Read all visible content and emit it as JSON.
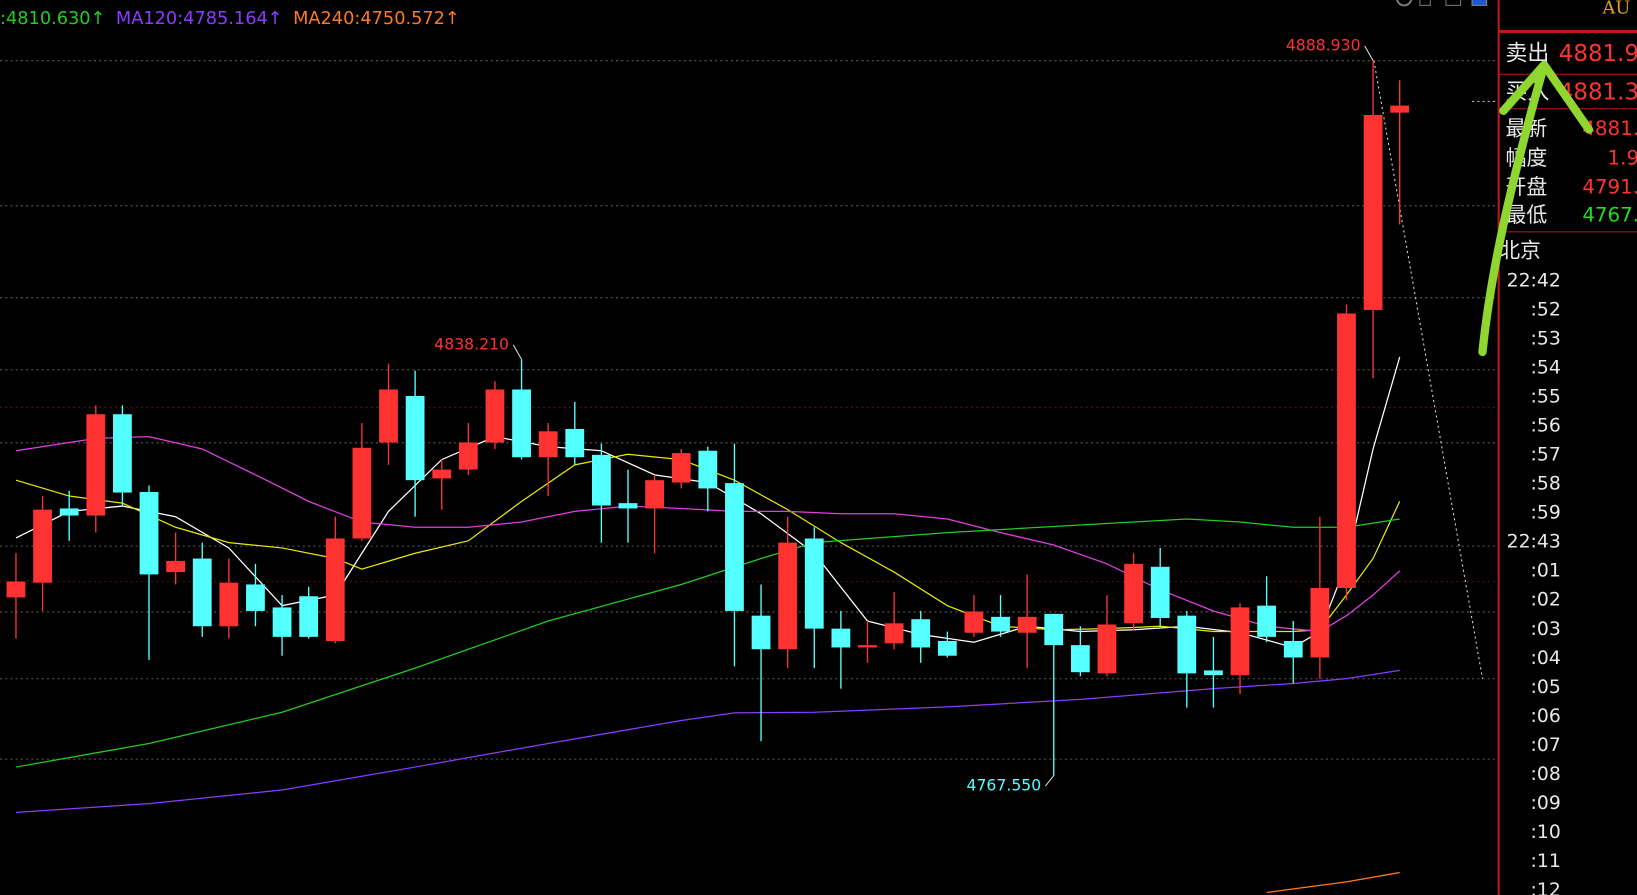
{
  "chart_data": {
    "type": "candlestick",
    "up_color": "#ff3232",
    "down_color": "#54ffff",
    "xlim": [
      -0.6,
      55.7
    ],
    "ylim": [
      4747.3,
      4899.2
    ],
    "ohlc": [
      [
        4797.8,
        4805.3,
        4790.8,
        4800.5
      ],
      [
        4800.3,
        4815.0,
        4795.5,
        4812.7
      ],
      [
        4812.9,
        4815.9,
        4807.4,
        4811.7
      ],
      [
        4811.7,
        4830.4,
        4808.8,
        4828.9
      ],
      [
        4828.9,
        4830.4,
        4813.3,
        4815.6
      ],
      [
        4815.7,
        4816.8,
        4787.2,
        4801.7
      ],
      [
        4802.1,
        4808.8,
        4800.0,
        4804.0
      ],
      [
        4804.4,
        4807.1,
        4791.1,
        4792.9
      ],
      [
        4792.9,
        4804.4,
        4790.8,
        4800.3
      ],
      [
        4800.0,
        4803.5,
        4792.9,
        4795.5
      ],
      [
        4796.1,
        4798.2,
        4787.9,
        4791.1
      ],
      [
        4798.0,
        4799.6,
        4790.8,
        4791.1
      ],
      [
        4790.4,
        4811.5,
        4790.0,
        4807.8
      ],
      [
        4807.8,
        4827.4,
        4807.4,
        4823.2
      ],
      [
        4824.1,
        4837.5,
        4820.3,
        4833.1
      ],
      [
        4832.0,
        4836.3,
        4811.5,
        4817.7
      ],
      [
        4818.0,
        4821.2,
        4812.7,
        4819.5
      ],
      [
        4819.5,
        4827.4,
        4818.6,
        4824.1
      ],
      [
        4824.1,
        4834.5,
        4823.0,
        4833.1
      ],
      [
        4833.1,
        4838.21,
        4821.2,
        4821.6
      ],
      [
        4821.6,
        4827.4,
        4815.0,
        4826.0
      ],
      [
        4826.4,
        4831.0,
        4820.3,
        4821.6
      ],
      [
        4822.0,
        4823.9,
        4807.1,
        4813.4
      ],
      [
        4813.8,
        4819.5,
        4807.1,
        4812.9
      ],
      [
        4812.9,
        4818.6,
        4805.3,
        4817.7
      ],
      [
        4817.3,
        4823.0,
        4816.3,
        4822.3
      ],
      [
        4822.7,
        4823.4,
        4812.4,
        4816.3
      ],
      [
        4817.2,
        4823.9,
        4786.1,
        4795.5
      ],
      [
        4794.7,
        4800.0,
        4773.4,
        4789.0
      ],
      [
        4789.0,
        4811.5,
        4785.8,
        4807.1
      ],
      [
        4807.8,
        4809.7,
        4785.8,
        4792.5
      ],
      [
        4792.5,
        4795.5,
        4782.3,
        4789.3
      ],
      [
        4789.3,
        4793.8,
        4786.7,
        4789.7
      ],
      [
        4790.0,
        4798.7,
        4789.0,
        4793.4
      ],
      [
        4794.1,
        4795.5,
        4786.7,
        4789.3
      ],
      [
        4790.4,
        4792.0,
        4787.6,
        4787.9
      ],
      [
        4791.8,
        4798.2,
        4791.1,
        4795.4
      ],
      [
        4794.5,
        4798.2,
        4791.1,
        4792.0
      ],
      [
        4791.8,
        4801.7,
        4785.8,
        4794.5
      ],
      [
        4795.0,
        4795.0,
        4767.55,
        4789.7
      ],
      [
        4789.7,
        4792.9,
        4784.4,
        4785.1
      ],
      [
        4784.9,
        4798.2,
        4784.4,
        4793.2
      ],
      [
        4793.4,
        4805.3,
        4792.3,
        4803.5
      ],
      [
        4803.0,
        4806.2,
        4792.9,
        4794.3
      ],
      [
        4794.7,
        4795.5,
        4779.1,
        4784.9
      ],
      [
        4785.4,
        4791.1,
        4779.1,
        4784.6
      ],
      [
        4784.6,
        4796.8,
        4781.4,
        4796.1
      ],
      [
        4796.4,
        4801.4,
        4790.2,
        4791.1
      ],
      [
        4790.4,
        4793.8,
        4783.2,
        4787.6
      ],
      [
        4787.6,
        4811.5,
        4784.0,
        4799.4
      ],
      [
        4799.4,
        4847.5,
        4797.3,
        4846.0
      ],
      [
        4846.6,
        4888.93,
        4835.0,
        4879.7
      ],
      [
        4880.1,
        4885.6,
        4861.1,
        4881.3
      ]
    ],
    "series": [
      {
        "color": "#ffffff",
        "x": [
          0,
          2,
          4,
          6,
          8,
          10,
          12,
          14,
          16,
          18,
          20,
          22,
          24,
          26,
          28,
          30,
          32,
          34,
          36,
          38,
          40,
          42,
          44,
          46,
          48,
          49,
          50,
          51,
          52
        ],
        "values": [
          4807.9,
          4812.4,
          4813.3,
          4811.5,
          4806.2,
          4796.4,
          4798.2,
          4812.4,
          4821.2,
          4825.1,
          4823.4,
          4822.7,
          4818.6,
          4817.3,
          4812.0,
          4805.3,
          4793.8,
          4791.5,
          4790.2,
          4792.9,
          4792.0,
          4792.3,
          4792.9,
          4791.8,
          4789.3,
          4792.0,
          4803.5,
          4823.0,
          4838.6
        ]
      },
      {
        "color": "#e8e800",
        "x": [
          0,
          2,
          4,
          6,
          8,
          10,
          12,
          13,
          15,
          17,
          19,
          21,
          23,
          25,
          27,
          29,
          31,
          33,
          35,
          37,
          39,
          41,
          43,
          45,
          47,
          48,
          49,
          50,
          51,
          52
        ],
        "values": [
          4817.7,
          4815.0,
          4813.8,
          4809.7,
          4807.1,
          4806.2,
          4804.4,
          4802.6,
          4805.3,
          4807.4,
          4814.1,
          4820.3,
          4822.1,
          4821.2,
          4817.7,
          4812.7,
          4807.1,
          4802.1,
          4796.4,
          4792.9,
          4792.3,
          4792.5,
          4792.9,
          4792.0,
          4792.0,
          4792.0,
          4792.3,
          4798.2,
          4804.4,
          4814.1
        ]
      },
      {
        "color": "#e040e0",
        "x": [
          0,
          3,
          5,
          7,
          9,
          11,
          13,
          15,
          17,
          19,
          21,
          23,
          25,
          27,
          29,
          31,
          33,
          35,
          37,
          39,
          41,
          43,
          45,
          47,
          49,
          50,
          51,
          52
        ],
        "values": [
          4822.7,
          4824.8,
          4825.1,
          4823.0,
          4818.6,
          4814.1,
          4810.6,
          4809.7,
          4809.7,
          4810.6,
          4812.4,
          4813.3,
          4812.9,
          4812.4,
          4812.4,
          4812.0,
          4812.0,
          4811.1,
          4808.8,
          4806.7,
          4803.5,
          4799.1,
          4795.5,
          4792.9,
          4792.0,
          4794.7,
          4798.2,
          4802.3
        ]
      },
      {
        "label": ":4810.630↑",
        "color": "#22cc22",
        "x": [
          0,
          5,
          10,
          15,
          20,
          25,
          28,
          30,
          35,
          40,
          44,
          46,
          48,
          50,
          52
        ],
        "values": [
          4769.0,
          4773.0,
          4778.3,
          4785.8,
          4793.8,
          4800.0,
          4804.4,
          4807.1,
          4808.8,
          4810.1,
          4811.1,
          4810.6,
          4809.7,
          4809.7,
          4811.1
        ]
      },
      {
        "label": "MA120:4785.164↑",
        "color": "#8a3cff",
        "x": [
          0,
          5,
          10,
          15,
          20,
          25,
          27,
          30,
          35,
          40,
          45,
          48,
          50,
          52
        ],
        "values": [
          4761.3,
          4762.8,
          4765.1,
          4769.0,
          4773.0,
          4776.9,
          4778.2,
          4778.3,
          4779.2,
          4780.5,
          4782.3,
          4783.2,
          4784.0,
          4785.4
        ]
      },
      {
        "label": "MA240:4750.572↑",
        "color": "#ff7a1a",
        "x": [
          47,
          50,
          52
        ],
        "values": [
          4747.7,
          4749.5,
          4751.1
        ]
      }
    ],
    "annotations": [
      {
        "label": "4888.930",
        "x": 51,
        "value": 4888.93,
        "color": "#ff3232"
      },
      {
        "label": "4838.210",
        "x": 19,
        "value": 4838.21,
        "color": "#ff3232"
      },
      {
        "label": "4767.550",
        "x": 39,
        "value": 4767.55,
        "color": "#54ffff"
      }
    ]
  },
  "quote_panel": {
    "symbol": "AU",
    "rows": [
      [
        "卖出",
        "4881.9"
      ],
      [
        "买入",
        "4881.3"
      ],
      [
        "最新",
        "4881."
      ],
      [
        "幅度",
        "1.9"
      ],
      [
        "开盘",
        "4791."
      ],
      [
        "最低",
        "4767."
      ]
    ],
    "city": "北京",
    "times": [
      "22:42",
      ":52",
      ":53",
      ":54",
      ":55",
      ":56",
      ":57",
      ":58",
      ":59",
      "22:43",
      ":01",
      ":02",
      ":03",
      ":04",
      ":05",
      ":06",
      ":07",
      ":08",
      ":09",
      ":10",
      ":11",
      ":12"
    ]
  }
}
